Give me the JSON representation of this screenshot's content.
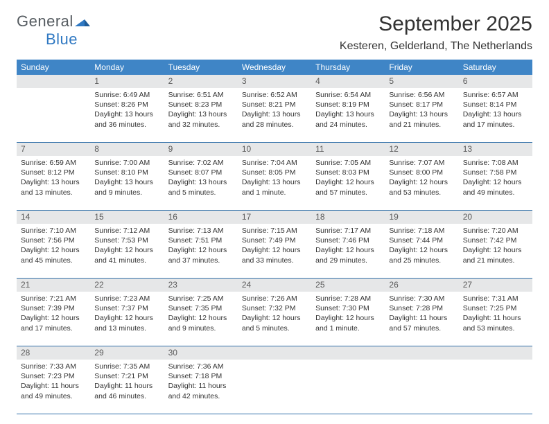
{
  "brand": {
    "general": "General",
    "blue": "Blue"
  },
  "title": "September 2025",
  "location": "Kesteren, Gelderland, The Netherlands",
  "colors": {
    "header_bg": "#3f85c6",
    "header_text": "#ffffff",
    "daynum_bg": "#e6e7e8",
    "week_border": "#2f6fa8",
    "body_text": "#333333",
    "logo_gray": "#555b60",
    "logo_blue": "#2f78c2",
    "page_bg": "#ffffff"
  },
  "typography": {
    "title_fontsize": 30,
    "location_fontsize": 16,
    "dayhead_fontsize": 12,
    "daynum_fontsize": 12,
    "info_fontsize": 10.5
  },
  "day_headers": [
    "Sunday",
    "Monday",
    "Tuesday",
    "Wednesday",
    "Thursday",
    "Friday",
    "Saturday"
  ],
  "weeks": [
    {
      "nums": [
        "",
        "1",
        "2",
        "3",
        "4",
        "5",
        "6"
      ],
      "cells": [
        {},
        {
          "sunrise": "Sunrise: 6:49 AM",
          "sunset": "Sunset: 8:26 PM",
          "day1": "Daylight: 13 hours",
          "day2": "and 36 minutes."
        },
        {
          "sunrise": "Sunrise: 6:51 AM",
          "sunset": "Sunset: 8:23 PM",
          "day1": "Daylight: 13 hours",
          "day2": "and 32 minutes."
        },
        {
          "sunrise": "Sunrise: 6:52 AM",
          "sunset": "Sunset: 8:21 PM",
          "day1": "Daylight: 13 hours",
          "day2": "and 28 minutes."
        },
        {
          "sunrise": "Sunrise: 6:54 AM",
          "sunset": "Sunset: 8:19 PM",
          "day1": "Daylight: 13 hours",
          "day2": "and 24 minutes."
        },
        {
          "sunrise": "Sunrise: 6:56 AM",
          "sunset": "Sunset: 8:17 PM",
          "day1": "Daylight: 13 hours",
          "day2": "and 21 minutes."
        },
        {
          "sunrise": "Sunrise: 6:57 AM",
          "sunset": "Sunset: 8:14 PM",
          "day1": "Daylight: 13 hours",
          "day2": "and 17 minutes."
        }
      ]
    },
    {
      "nums": [
        "7",
        "8",
        "9",
        "10",
        "11",
        "12",
        "13"
      ],
      "cells": [
        {
          "sunrise": "Sunrise: 6:59 AM",
          "sunset": "Sunset: 8:12 PM",
          "day1": "Daylight: 13 hours",
          "day2": "and 13 minutes."
        },
        {
          "sunrise": "Sunrise: 7:00 AM",
          "sunset": "Sunset: 8:10 PM",
          "day1": "Daylight: 13 hours",
          "day2": "and 9 minutes."
        },
        {
          "sunrise": "Sunrise: 7:02 AM",
          "sunset": "Sunset: 8:07 PM",
          "day1": "Daylight: 13 hours",
          "day2": "and 5 minutes."
        },
        {
          "sunrise": "Sunrise: 7:04 AM",
          "sunset": "Sunset: 8:05 PM",
          "day1": "Daylight: 13 hours",
          "day2": "and 1 minute."
        },
        {
          "sunrise": "Sunrise: 7:05 AM",
          "sunset": "Sunset: 8:03 PM",
          "day1": "Daylight: 12 hours",
          "day2": "and 57 minutes."
        },
        {
          "sunrise": "Sunrise: 7:07 AM",
          "sunset": "Sunset: 8:00 PM",
          "day1": "Daylight: 12 hours",
          "day2": "and 53 minutes."
        },
        {
          "sunrise": "Sunrise: 7:08 AM",
          "sunset": "Sunset: 7:58 PM",
          "day1": "Daylight: 12 hours",
          "day2": "and 49 minutes."
        }
      ]
    },
    {
      "nums": [
        "14",
        "15",
        "16",
        "17",
        "18",
        "19",
        "20"
      ],
      "cells": [
        {
          "sunrise": "Sunrise: 7:10 AM",
          "sunset": "Sunset: 7:56 PM",
          "day1": "Daylight: 12 hours",
          "day2": "and 45 minutes."
        },
        {
          "sunrise": "Sunrise: 7:12 AM",
          "sunset": "Sunset: 7:53 PM",
          "day1": "Daylight: 12 hours",
          "day2": "and 41 minutes."
        },
        {
          "sunrise": "Sunrise: 7:13 AM",
          "sunset": "Sunset: 7:51 PM",
          "day1": "Daylight: 12 hours",
          "day2": "and 37 minutes."
        },
        {
          "sunrise": "Sunrise: 7:15 AM",
          "sunset": "Sunset: 7:49 PM",
          "day1": "Daylight: 12 hours",
          "day2": "and 33 minutes."
        },
        {
          "sunrise": "Sunrise: 7:17 AM",
          "sunset": "Sunset: 7:46 PM",
          "day1": "Daylight: 12 hours",
          "day2": "and 29 minutes."
        },
        {
          "sunrise": "Sunrise: 7:18 AM",
          "sunset": "Sunset: 7:44 PM",
          "day1": "Daylight: 12 hours",
          "day2": "and 25 minutes."
        },
        {
          "sunrise": "Sunrise: 7:20 AM",
          "sunset": "Sunset: 7:42 PM",
          "day1": "Daylight: 12 hours",
          "day2": "and 21 minutes."
        }
      ]
    },
    {
      "nums": [
        "21",
        "22",
        "23",
        "24",
        "25",
        "26",
        "27"
      ],
      "cells": [
        {
          "sunrise": "Sunrise: 7:21 AM",
          "sunset": "Sunset: 7:39 PM",
          "day1": "Daylight: 12 hours",
          "day2": "and 17 minutes."
        },
        {
          "sunrise": "Sunrise: 7:23 AM",
          "sunset": "Sunset: 7:37 PM",
          "day1": "Daylight: 12 hours",
          "day2": "and 13 minutes."
        },
        {
          "sunrise": "Sunrise: 7:25 AM",
          "sunset": "Sunset: 7:35 PM",
          "day1": "Daylight: 12 hours",
          "day2": "and 9 minutes."
        },
        {
          "sunrise": "Sunrise: 7:26 AM",
          "sunset": "Sunset: 7:32 PM",
          "day1": "Daylight: 12 hours",
          "day2": "and 5 minutes."
        },
        {
          "sunrise": "Sunrise: 7:28 AM",
          "sunset": "Sunset: 7:30 PM",
          "day1": "Daylight: 12 hours",
          "day2": "and 1 minute."
        },
        {
          "sunrise": "Sunrise: 7:30 AM",
          "sunset": "Sunset: 7:28 PM",
          "day1": "Daylight: 11 hours",
          "day2": "and 57 minutes."
        },
        {
          "sunrise": "Sunrise: 7:31 AM",
          "sunset": "Sunset: 7:25 PM",
          "day1": "Daylight: 11 hours",
          "day2": "and 53 minutes."
        }
      ]
    },
    {
      "nums": [
        "28",
        "29",
        "30",
        "",
        "",
        "",
        ""
      ],
      "cells": [
        {
          "sunrise": "Sunrise: 7:33 AM",
          "sunset": "Sunset: 7:23 PM",
          "day1": "Daylight: 11 hours",
          "day2": "and 49 minutes."
        },
        {
          "sunrise": "Sunrise: 7:35 AM",
          "sunset": "Sunset: 7:21 PM",
          "day1": "Daylight: 11 hours",
          "day2": "and 46 minutes."
        },
        {
          "sunrise": "Sunrise: 7:36 AM",
          "sunset": "Sunset: 7:18 PM",
          "day1": "Daylight: 11 hours",
          "day2": "and 42 minutes."
        },
        {},
        {},
        {},
        {}
      ]
    }
  ]
}
